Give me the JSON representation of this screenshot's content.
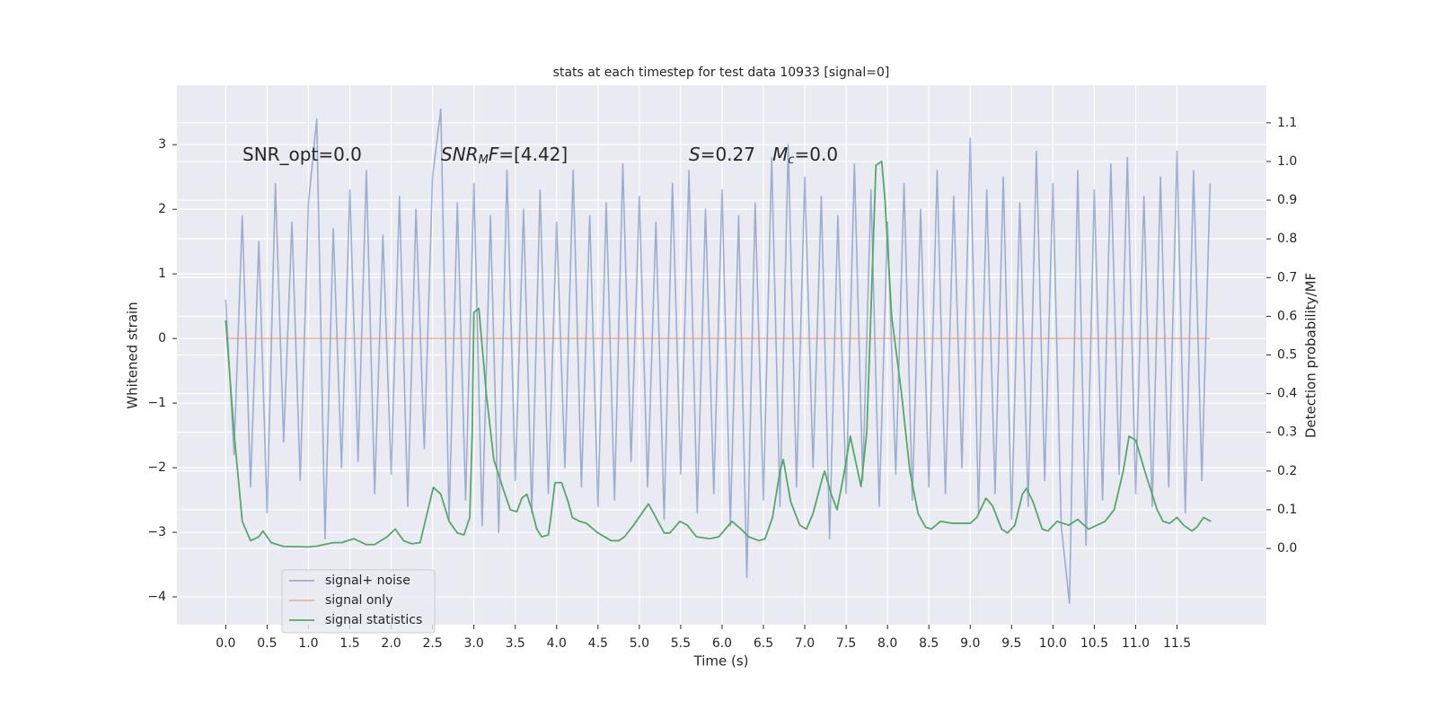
{
  "chart_data": {
    "type": "line",
    "title": "stats at each timestep for test data 10933 [signal=0]",
    "xlabel": "Time (s)",
    "ylabel": "Whitened strain",
    "y2label": "Detection probability/MF",
    "grid": true,
    "legend": "lower left",
    "xlim": [
      -0.59,
      12.58
    ],
    "ylim": [
      -4.43,
      3.92
    ],
    "y2lim": [
      -0.197,
      1.197
    ],
    "xticks": [
      {
        "value": 0,
        "label": "0.0"
      },
      {
        "value": 0.5,
        "label": "0.5"
      },
      {
        "value": 1,
        "label": "1.0"
      },
      {
        "value": 1.5,
        "label": "1.5"
      },
      {
        "value": 2,
        "label": "2.0"
      },
      {
        "value": 2.5,
        "label": "2.5"
      },
      {
        "value": 3,
        "label": "3.0"
      },
      {
        "value": 3.5,
        "label": "3.5"
      },
      {
        "value": 4,
        "label": "4.0"
      },
      {
        "value": 4.5,
        "label": "4.5"
      },
      {
        "value": 5,
        "label": "5.0"
      },
      {
        "value": 5.5,
        "label": "5.5"
      },
      {
        "value": 6,
        "label": "6.0"
      },
      {
        "value": 6.5,
        "label": "6.5"
      },
      {
        "value": 7,
        "label": "7.0"
      },
      {
        "value": 7.5,
        "label": "7.5"
      },
      {
        "value": 8,
        "label": "8.0"
      },
      {
        "value": 8.5,
        "label": "8.5"
      },
      {
        "value": 9,
        "label": "9.0"
      },
      {
        "value": 9.5,
        "label": "9.5"
      },
      {
        "value": 10,
        "label": "10.0"
      },
      {
        "value": 10.5,
        "label": "10.5"
      },
      {
        "value": 11,
        "label": "11.0"
      },
      {
        "value": 11.5,
        "label": "11.5"
      }
    ],
    "yticks": [
      {
        "value": -4,
        "label": "−4"
      },
      {
        "value": -3,
        "label": "−3"
      },
      {
        "value": -2,
        "label": "−2"
      },
      {
        "value": -1,
        "label": "−1"
      },
      0,
      1,
      2,
      3
    ],
    "y2ticks": [
      {
        "value": 0,
        "label": "0.0"
      },
      0.1,
      0.2,
      0.3,
      0.4,
      0.5,
      0.6,
      0.7,
      0.8,
      0.9,
      {
        "value": 1,
        "label": "1.0"
      },
      1.1
    ],
    "annotations": [
      [
        {
          "text": "SNR_opt=0.0"
        }
      ],
      [
        {
          "text": "SNR",
          "italic": true
        },
        {
          "text": "M",
          "italic": true,
          "sub": true
        },
        {
          "text": "F",
          "italic": true
        },
        {
          "text": "=[4.42]"
        }
      ],
      [
        {
          "text": "S",
          "italic": true
        },
        {
          "text": "=0.27   "
        },
        {
          "text": "M",
          "italic": true
        },
        {
          "text": "c",
          "italic": true,
          "sub": true
        },
        {
          "text": "=0.0"
        }
      ]
    ],
    "series": [
      {
        "name": "signal+ noise",
        "color": "#4c72b0",
        "opacity": 0.5,
        "axis": "y",
        "x": [
          0.0,
          0.1,
          0.2,
          0.3,
          0.4,
          0.5,
          0.6,
          0.7,
          0.8,
          0.9,
          1.0,
          1.1,
          1.2,
          1.3,
          1.4,
          1.5,
          1.6,
          1.7,
          1.8,
          1.9,
          2.0,
          2.1,
          2.2,
          2.3,
          2.4,
          2.5,
          2.6,
          2.7,
          2.8,
          2.9,
          3.0,
          3.1,
          3.2,
          3.3,
          3.4,
          3.5,
          3.6,
          3.7,
          3.8,
          3.9,
          4.0,
          4.1,
          4.2,
          4.3,
          4.4,
          4.5,
          4.6,
          4.7,
          4.8,
          4.9,
          5.0,
          5.1,
          5.2,
          5.3,
          5.4,
          5.5,
          5.6,
          5.7,
          5.8,
          5.9,
          6.0,
          6.1,
          6.2,
          6.3,
          6.4,
          6.5,
          6.6,
          6.7,
          6.8,
          6.9,
          7.0,
          7.1,
          7.2,
          7.3,
          7.4,
          7.5,
          7.6,
          7.7,
          7.8,
          7.9,
          8.0,
          8.1,
          8.2,
          8.3,
          8.4,
          8.5,
          8.6,
          8.7,
          8.8,
          8.9,
          9.0,
          9.1,
          9.2,
          9.3,
          9.4,
          9.5,
          9.6,
          9.7,
          9.8,
          9.9,
          10.0,
          10.1,
          10.2,
          10.3,
          10.4,
          10.5,
          10.6,
          10.7,
          10.8,
          10.9,
          11.0,
          11.1,
          11.2,
          11.3,
          11.4,
          11.5,
          11.6,
          11.7,
          11.8,
          11.9
        ],
        "values": [
          0.6,
          -1.8,
          1.9,
          -2.3,
          1.5,
          -2.7,
          2.4,
          -1.6,
          1.8,
          -2.2,
          2.1,
          3.4,
          -3.1,
          1.7,
          -2.0,
          2.3,
          -1.9,
          2.6,
          -2.4,
          1.6,
          -2.1,
          2.2,
          -2.6,
          2.0,
          -1.7,
          2.5,
          3.55,
          -2.8,
          2.1,
          -2.5,
          2.4,
          -2.9,
          1.9,
          -3.0,
          2.6,
          -2.2,
          2.0,
          -2.7,
          2.3,
          -2.4,
          1.8,
          -2.0,
          2.6,
          -2.3,
          1.9,
          -2.6,
          2.1,
          -2.5,
          2.7,
          -1.9,
          2.2,
          -2.3,
          1.8,
          -2.8,
          2.4,
          -2.1,
          2.6,
          -2.7,
          2.0,
          -2.4,
          2.3,
          -2.9,
          1.9,
          -3.7,
          2.1,
          -2.5,
          2.8,
          -2.6,
          3.0,
          -2.3,
          2.5,
          -2.0,
          2.2,
          -3.1,
          1.9,
          -2.4,
          2.7,
          -2.2,
          2.3,
          -2.6,
          1.8,
          -2.1,
          2.4,
          -2.5,
          2.0,
          -2.3,
          2.6,
          -2.4,
          2.2,
          -2.0,
          3.1,
          -2.7,
          2.3,
          -2.4,
          2.5,
          -2.8,
          2.1,
          -2.6,
          2.9,
          -2.2,
          2.4,
          -2.9,
          -4.1,
          2.6,
          -3.2,
          2.3,
          -2.5,
          2.7,
          -2.1,
          2.8,
          -2.4,
          2.2,
          -2.6,
          2.5,
          -2.3,
          2.9,
          -2.7,
          2.6,
          -2.2,
          2.4
        ]
      },
      {
        "name": "signal only",
        "color": "#dd8452",
        "opacity": 0.5,
        "axis": "y",
        "x": [
          0.0,
          11.9
        ],
        "values": [
          0,
          0
        ]
      },
      {
        "name": "signal statistics",
        "color": "#55a868",
        "opacity": 1,
        "axis": "y2",
        "x": [
          0,
          0.1,
          0.2,
          0.3,
          0.4,
          0.45,
          0.55,
          0.7,
          1.0,
          1.1,
          1.3,
          1.4,
          1.55,
          1.7,
          1.8,
          1.95,
          2.05,
          2.15,
          2.25,
          2.35,
          2.51,
          2.6,
          2.7,
          2.8,
          2.88,
          2.95,
          2.98,
          3.0,
          3.06,
          3.15,
          3.24,
          3.36,
          3.44,
          3.52,
          3.58,
          3.64,
          3.7,
          3.76,
          3.82,
          3.9,
          3.93,
          3.98,
          4.06,
          4.14,
          4.19,
          4.28,
          4.36,
          4.5,
          4.66,
          4.75,
          4.82,
          4.93,
          5.06,
          5.11,
          5.2,
          5.3,
          5.37,
          5.49,
          5.58,
          5.69,
          5.85,
          5.96,
          6.12,
          6.23,
          6.32,
          6.45,
          6.52,
          6.61,
          6.7,
          6.74,
          6.83,
          6.94,
          7.02,
          7.1,
          7.21,
          7.24,
          7.32,
          7.39,
          7.48,
          7.55,
          7.62,
          7.68,
          7.75,
          7.86,
          7.93,
          7.97,
          8.05,
          8.17,
          8.27,
          8.37,
          8.46,
          8.53,
          8.64,
          8.78,
          9.0,
          9.08,
          9.19,
          9.27,
          9.38,
          9.45,
          9.54,
          9.63,
          9.68,
          9.76,
          9.87,
          9.94,
          10.05,
          10.19,
          10.3,
          10.43,
          10.63,
          10.74,
          10.85,
          10.92,
          11.0,
          11.11,
          11.26,
          11.33,
          11.41,
          11.5,
          11.58,
          11.68,
          11.74,
          11.82,
          11.91
        ],
        "values": [
          0.59,
          0.3,
          0.07,
          0.02,
          0.03,
          0.045,
          0.015,
          0.005,
          0.004,
          0.006,
          0.015,
          0.015,
          0.025,
          0.01,
          0.01,
          0.03,
          0.05,
          0.02,
          0.012,
          0.015,
          0.158,
          0.14,
          0.07,
          0.04,
          0.035,
          0.08,
          0.3,
          0.61,
          0.62,
          0.4,
          0.23,
          0.15,
          0.1,
          0.095,
          0.13,
          0.14,
          0.1,
          0.05,
          0.03,
          0.035,
          0.08,
          0.17,
          0.17,
          0.12,
          0.08,
          0.07,
          0.065,
          0.04,
          0.02,
          0.02,
          0.03,
          0.06,
          0.1,
          0.115,
          0.08,
          0.04,
          0.04,
          0.07,
          0.06,
          0.03,
          0.025,
          0.03,
          0.07,
          0.05,
          0.03,
          0.02,
          0.025,
          0.08,
          0.2,
          0.23,
          0.12,
          0.06,
          0.05,
          0.09,
          0.18,
          0.2,
          0.14,
          0.1,
          0.2,
          0.29,
          0.22,
          0.16,
          0.3,
          0.99,
          1.0,
          0.9,
          0.6,
          0.4,
          0.2,
          0.09,
          0.055,
          0.05,
          0.07,
          0.065,
          0.065,
          0.08,
          0.13,
          0.11,
          0.05,
          0.04,
          0.06,
          0.14,
          0.155,
          0.12,
          0.05,
          0.045,
          0.07,
          0.06,
          0.075,
          0.05,
          0.07,
          0.1,
          0.2,
          0.29,
          0.28,
          0.2,
          0.1,
          0.07,
          0.065,
          0.08,
          0.06,
          0.045,
          0.055,
          0.08,
          0.07
        ]
      }
    ]
  }
}
